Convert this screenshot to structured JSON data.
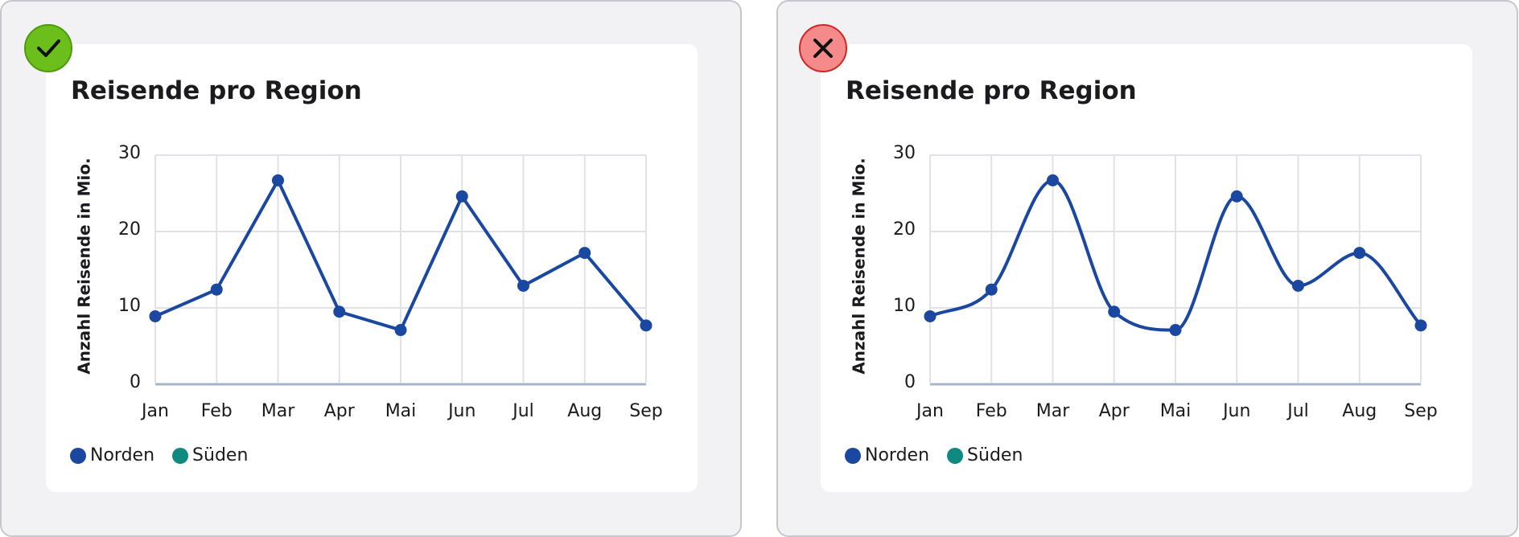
{
  "chart_data": [
    {
      "type": "line",
      "title": "Reisende pro Region",
      "y_label": "Anzahl Reisende in Mio.",
      "categories": [
        "Jan",
        "Feb",
        "Mar",
        "Apr",
        "Mai",
        "Jun",
        "Jul",
        "Aug",
        "Sep"
      ],
      "series": [
        {
          "name": "Norden",
          "color": "#1a47a0",
          "values": [
            8.9,
            12.4,
            26.7,
            9.5,
            7.1,
            24.6,
            12.9,
            17.2,
            7.7
          ]
        },
        {
          "name": "Süden",
          "color": "#0f8a80",
          "values": [
            null,
            null,
            null,
            null,
            null,
            null,
            null,
            null,
            null
          ]
        }
      ],
      "ylim": [
        0,
        30
      ],
      "yticks": [
        0,
        10,
        20,
        30
      ],
      "grid": true,
      "smooth": false
    },
    {
      "type": "line",
      "title": "Reisende pro Region",
      "y_label": "Anzahl Reisende in Mio.",
      "categories": [
        "Jan",
        "Feb",
        "Mar",
        "Apr",
        "Mai",
        "Jun",
        "Jul",
        "Aug",
        "Sep"
      ],
      "series": [
        {
          "name": "Norden",
          "color": "#1a47a0",
          "values": [
            8.9,
            12.4,
            26.7,
            9.5,
            7.1,
            24.6,
            12.9,
            17.2,
            7.7
          ]
        },
        {
          "name": "Süden",
          "color": "#0f8a80",
          "values": [
            null,
            null,
            null,
            null,
            null,
            null,
            null,
            null,
            null
          ]
        }
      ],
      "ylim": [
        0,
        30
      ],
      "yticks": [
        0,
        10,
        20,
        30
      ],
      "grid": true,
      "smooth": true
    }
  ]
}
